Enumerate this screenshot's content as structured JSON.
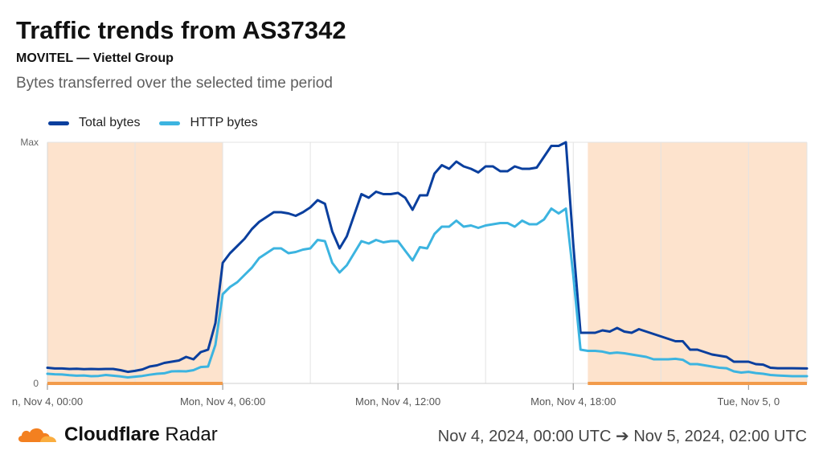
{
  "header": {
    "title": "Traffic trends from AS37342",
    "subtitle": "MOVITEL — Viettel Group",
    "description": "Bytes transferred over the selected time period"
  },
  "footer": {
    "brand_bold": "Cloudflare",
    "brand_light": "Radar",
    "date_range": "Nov 4, 2024, 00:00 UTC ➔ Nov 5, 2024, 02:00 UTC"
  },
  "colors": {
    "total": "#0a3f9e",
    "http": "#3cb4e0",
    "night_band": "#fde3cd",
    "night_line": "#f29b4b",
    "grid": "#e3e3e3"
  },
  "chart_data": {
    "type": "line",
    "title": "Traffic trends from AS37342",
    "subtitle": "MOVITEL — Viettel Group",
    "description": "Bytes transferred over the selected time period",
    "y_tick_labels": [
      "0",
      "Max"
    ],
    "ylim": [
      0,
      1
    ],
    "x_tick_labels": [
      {
        "hour": 0,
        "label": "n, Nov 4, 00:00"
      },
      {
        "hour": 6,
        "label": "Mon, Nov 4, 06:00"
      },
      {
        "hour": 12,
        "label": "Mon, Nov 4, 12:00"
      },
      {
        "hour": 18,
        "label": "Mon, Nov 4, 18:00"
      },
      {
        "hour": 24,
        "label": "Tue, Nov 5, 0"
      }
    ],
    "xlim": [
      0,
      26
    ],
    "night_periods": [
      [
        0,
        6
      ],
      [
        18.5,
        26
      ]
    ],
    "grid": true,
    "legend_position": "top-left",
    "series": [
      {
        "name": "Total bytes",
        "color": "#0a3f9e",
        "points": [
          [
            0,
            0.065
          ],
          [
            0.25,
            0.062
          ],
          [
            0.5,
            0.062
          ],
          [
            0.75,
            0.06
          ],
          [
            1,
            0.061
          ],
          [
            1.25,
            0.059
          ],
          [
            1.5,
            0.06
          ],
          [
            1.75,
            0.059
          ],
          [
            2,
            0.06
          ],
          [
            2.25,
            0.06
          ],
          [
            2.5,
            0.055
          ],
          [
            2.75,
            0.048
          ],
          [
            3,
            0.052
          ],
          [
            3.25,
            0.058
          ],
          [
            3.5,
            0.07
          ],
          [
            3.75,
            0.075
          ],
          [
            4,
            0.085
          ],
          [
            4.25,
            0.09
          ],
          [
            4.5,
            0.095
          ],
          [
            4.75,
            0.11
          ],
          [
            5,
            0.1
          ],
          [
            5.25,
            0.13
          ],
          [
            5.5,
            0.14
          ],
          [
            5.75,
            0.25
          ],
          [
            6,
            0.5
          ],
          [
            6.25,
            0.54
          ],
          [
            6.5,
            0.57
          ],
          [
            6.75,
            0.6
          ],
          [
            7,
            0.64
          ],
          [
            7.25,
            0.67
          ],
          [
            7.5,
            0.69
          ],
          [
            7.75,
            0.71
          ],
          [
            8,
            0.71
          ],
          [
            8.25,
            0.705
          ],
          [
            8.5,
            0.695
          ],
          [
            8.75,
            0.71
          ],
          [
            9,
            0.73
          ],
          [
            9.25,
            0.76
          ],
          [
            9.5,
            0.745
          ],
          [
            9.75,
            0.63
          ],
          [
            10,
            0.56
          ],
          [
            10.25,
            0.61
          ],
          [
            10.75,
            0.785
          ],
          [
            11,
            0.77
          ],
          [
            11.25,
            0.795
          ],
          [
            11.5,
            0.785
          ],
          [
            11.75,
            0.785
          ],
          [
            12,
            0.79
          ],
          [
            12.25,
            0.77
          ],
          [
            12.5,
            0.72
          ],
          [
            12.75,
            0.78
          ],
          [
            13,
            0.78
          ],
          [
            13.25,
            0.87
          ],
          [
            13.5,
            0.905
          ],
          [
            13.75,
            0.89
          ],
          [
            14,
            0.92
          ],
          [
            14.25,
            0.9
          ],
          [
            14.5,
            0.89
          ],
          [
            14.75,
            0.875
          ],
          [
            15,
            0.9
          ],
          [
            15.25,
            0.9
          ],
          [
            15.5,
            0.88
          ],
          [
            15.75,
            0.88
          ],
          [
            16,
            0.9
          ],
          [
            16.25,
            0.89
          ],
          [
            16.5,
            0.89
          ],
          [
            16.75,
            0.895
          ],
          [
            17,
            0.94
          ],
          [
            17.25,
            0.985
          ],
          [
            17.5,
            0.985
          ],
          [
            17.75,
            1.0
          ],
          [
            18,
            0.58
          ],
          [
            18.25,
            0.21
          ],
          [
            18.5,
            0.21
          ],
          [
            18.75,
            0.21
          ],
          [
            19,
            0.22
          ],
          [
            19.25,
            0.215
          ],
          [
            19.5,
            0.23
          ],
          [
            19.75,
            0.215
          ],
          [
            20,
            0.21
          ],
          [
            20.25,
            0.225
          ],
          [
            20.5,
            0.215
          ],
          [
            20.75,
            0.205
          ],
          [
            21,
            0.195
          ],
          [
            21.25,
            0.185
          ],
          [
            21.5,
            0.175
          ],
          [
            21.75,
            0.175
          ],
          [
            22,
            0.14
          ],
          [
            22.25,
            0.14
          ],
          [
            22.5,
            0.13
          ],
          [
            22.75,
            0.12
          ],
          [
            23,
            0.115
          ],
          [
            23.25,
            0.11
          ],
          [
            23.5,
            0.09
          ],
          [
            23.75,
            0.09
          ],
          [
            24,
            0.09
          ],
          [
            24.25,
            0.08
          ],
          [
            24.5,
            0.078
          ],
          [
            24.75,
            0.065
          ],
          [
            25,
            0.063
          ],
          [
            25.5,
            0.063
          ],
          [
            26,
            0.062
          ]
        ]
      },
      {
        "name": "HTTP bytes",
        "color": "#3cb4e0",
        "points": [
          [
            0,
            0.04
          ],
          [
            0.25,
            0.038
          ],
          [
            0.5,
            0.037
          ],
          [
            0.75,
            0.034
          ],
          [
            1,
            0.032
          ],
          [
            1.25,
            0.033
          ],
          [
            1.5,
            0.03
          ],
          [
            1.75,
            0.031
          ],
          [
            2,
            0.035
          ],
          [
            2.25,
            0.032
          ],
          [
            2.5,
            0.029
          ],
          [
            2.75,
            0.025
          ],
          [
            3,
            0.028
          ],
          [
            3.25,
            0.031
          ],
          [
            3.5,
            0.036
          ],
          [
            3.75,
            0.04
          ],
          [
            4,
            0.042
          ],
          [
            4.25,
            0.05
          ],
          [
            4.5,
            0.051
          ],
          [
            4.75,
            0.05
          ],
          [
            5,
            0.055
          ],
          [
            5.25,
            0.068
          ],
          [
            5.5,
            0.07
          ],
          [
            5.75,
            0.16
          ],
          [
            6,
            0.37
          ],
          [
            6.25,
            0.4
          ],
          [
            6.5,
            0.42
          ],
          [
            6.75,
            0.45
          ],
          [
            7,
            0.48
          ],
          [
            7.25,
            0.52
          ],
          [
            7.5,
            0.54
          ],
          [
            7.75,
            0.56
          ],
          [
            8,
            0.56
          ],
          [
            8.25,
            0.54
          ],
          [
            8.5,
            0.545
          ],
          [
            8.75,
            0.555
          ],
          [
            9,
            0.56
          ],
          [
            9.25,
            0.595
          ],
          [
            9.5,
            0.59
          ],
          [
            9.75,
            0.5
          ],
          [
            10,
            0.46
          ],
          [
            10.25,
            0.49
          ],
          [
            10.75,
            0.59
          ],
          [
            11,
            0.58
          ],
          [
            11.25,
            0.595
          ],
          [
            11.5,
            0.585
          ],
          [
            11.75,
            0.59
          ],
          [
            12,
            0.59
          ],
          [
            12.25,
            0.55
          ],
          [
            12.5,
            0.51
          ],
          [
            12.75,
            0.565
          ],
          [
            13,
            0.56
          ],
          [
            13.25,
            0.62
          ],
          [
            13.5,
            0.65
          ],
          [
            13.75,
            0.65
          ],
          [
            14,
            0.675
          ],
          [
            14.25,
            0.65
          ],
          [
            14.5,
            0.655
          ],
          [
            14.75,
            0.645
          ],
          [
            15,
            0.655
          ],
          [
            15.25,
            0.66
          ],
          [
            15.5,
            0.665
          ],
          [
            15.75,
            0.665
          ],
          [
            16,
            0.65
          ],
          [
            16.25,
            0.675
          ],
          [
            16.5,
            0.66
          ],
          [
            16.75,
            0.66
          ],
          [
            17,
            0.68
          ],
          [
            17.25,
            0.725
          ],
          [
            17.5,
            0.705
          ],
          [
            17.75,
            0.725
          ],
          [
            18,
            0.45
          ],
          [
            18.25,
            0.14
          ],
          [
            18.5,
            0.135
          ],
          [
            18.75,
            0.135
          ],
          [
            19,
            0.132
          ],
          [
            19.25,
            0.125
          ],
          [
            19.5,
            0.128
          ],
          [
            19.75,
            0.125
          ],
          [
            20,
            0.12
          ],
          [
            20.25,
            0.115
          ],
          [
            20.5,
            0.11
          ],
          [
            20.75,
            0.1
          ],
          [
            21,
            0.1
          ],
          [
            21.25,
            0.1
          ],
          [
            21.5,
            0.102
          ],
          [
            21.75,
            0.098
          ],
          [
            22,
            0.08
          ],
          [
            22.25,
            0.08
          ],
          [
            22.5,
            0.075
          ],
          [
            22.75,
            0.07
          ],
          [
            23,
            0.065
          ],
          [
            23.25,
            0.063
          ],
          [
            23.5,
            0.05
          ],
          [
            23.75,
            0.045
          ],
          [
            24,
            0.048
          ],
          [
            24.25,
            0.043
          ],
          [
            24.5,
            0.04
          ],
          [
            24.75,
            0.035
          ],
          [
            25,
            0.033
          ],
          [
            25.5,
            0.03
          ],
          [
            26,
            0.03
          ]
        ]
      }
    ]
  }
}
